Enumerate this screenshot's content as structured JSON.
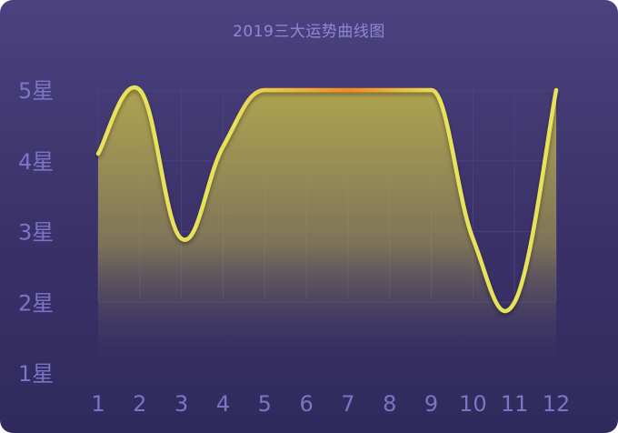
{
  "title": "2019三大运势曲线图",
  "chart_data": {
    "type": "area",
    "title": "2019三大运势曲线图",
    "x": [
      1,
      2,
      3,
      4,
      5,
      6,
      7,
      8,
      9,
      10,
      11,
      12
    ],
    "xticks": [
      "1",
      "2",
      "3",
      "4",
      "5",
      "6",
      "7",
      "8",
      "9",
      "10",
      "11",
      "12"
    ],
    "yticks": [
      "1星",
      "2星",
      "3星",
      "4星",
      "5星"
    ],
    "ylim": [
      1,
      5
    ],
    "series": [
      {
        "values": [
          4.1,
          5.0,
          2.9,
          4.2,
          5.0,
          5.0,
          5.0,
          5.0,
          5.0,
          2.9,
          2.0,
          5.0
        ]
      }
    ],
    "grid": true,
    "colors": {
      "line": "#e8e25a",
      "line_highlight": "#f28a1e",
      "fill_top": "#b5a94c",
      "fill_bottom": "#3b336b",
      "grid": "#4a4480",
      "tick": "#7a75c6"
    }
  }
}
